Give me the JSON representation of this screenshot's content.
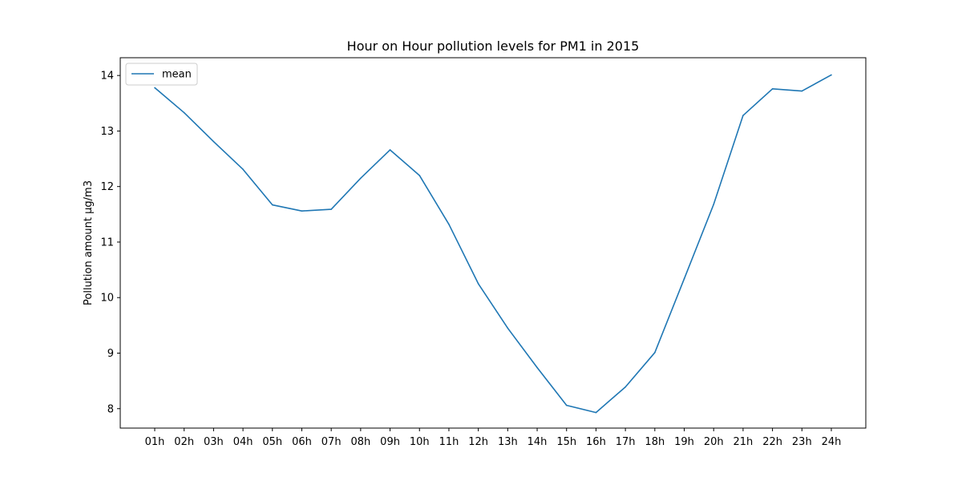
{
  "chart_data": {
    "type": "line",
    "title": "Hour on Hour pollution levels for PM1 in 2015",
    "xlabel": "",
    "ylabel": "Pollution amount µg/m3",
    "categories": [
      "01h",
      "02h",
      "03h",
      "04h",
      "05h",
      "06h",
      "07h",
      "08h",
      "09h",
      "10h",
      "11h",
      "12h",
      "13h",
      "14h",
      "15h",
      "16h",
      "17h",
      "18h",
      "19h",
      "20h",
      "21h",
      "22h",
      "23h",
      "24h"
    ],
    "series": [
      {
        "name": "mean",
        "color": "#1f77b4",
        "values": [
          13.78,
          13.33,
          12.81,
          12.31,
          11.67,
          11.56,
          11.59,
          12.15,
          12.66,
          12.2,
          11.32,
          10.25,
          9.45,
          8.74,
          8.06,
          7.93,
          8.39,
          9.01,
          10.34,
          11.68,
          13.28,
          13.76,
          13.72,
          14.01
        ]
      }
    ],
    "yticks": [
      8,
      9,
      10,
      11,
      12,
      13,
      14
    ],
    "ylim": [
      7.65,
      14.32
    ],
    "grid": false,
    "legend_position": "top-left"
  }
}
